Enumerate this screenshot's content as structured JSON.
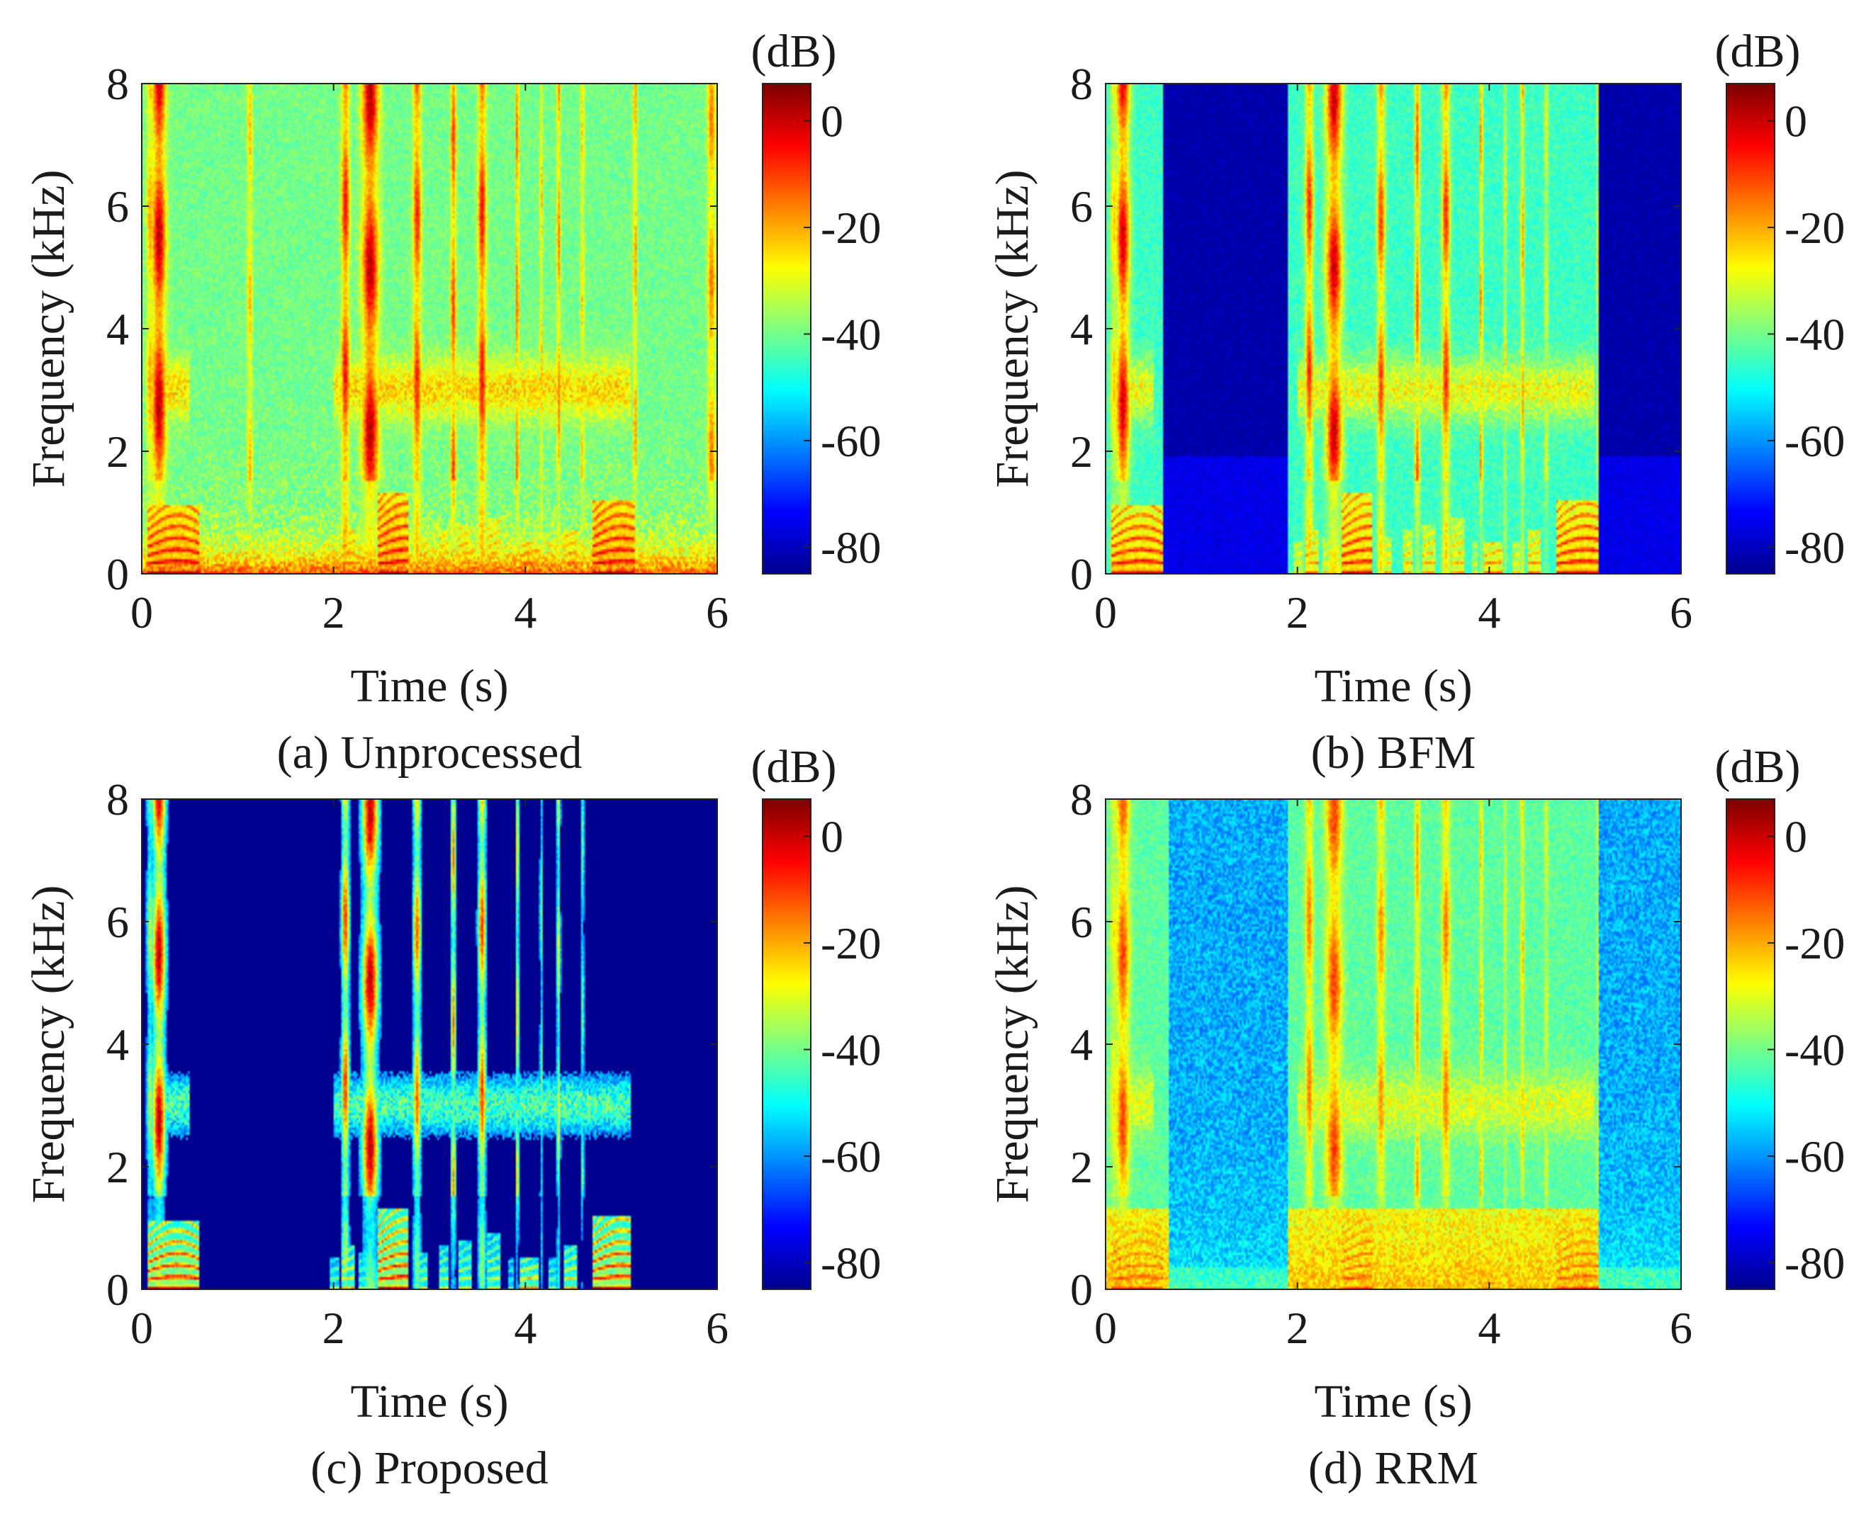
{
  "figure": {
    "colorbar_unit": "(dB)"
  },
  "colormap": {
    "name": "jet",
    "stops": [
      "#00008f",
      "#0000ff",
      "#007fff",
      "#00ffff",
      "#7fff7f",
      "#ffff00",
      "#ff7f00",
      "#ff0000",
      "#7f0000"
    ]
  },
  "chart_data": [
    {
      "type": "heatmap",
      "id": "a",
      "caption": "(a) Unprocessed",
      "xlabel": "Time (s)",
      "ylabel": "Frequency (kHz)",
      "xlim": [
        0,
        6
      ],
      "ylim": [
        0,
        8
      ],
      "xticks": [
        "0",
        "2",
        "4",
        "6"
      ],
      "yticks": [
        "0",
        "2",
        "4",
        "6",
        "8"
      ],
      "colorbar": {
        "unit": "(dB)",
        "range": [
          -85,
          7
        ],
        "ticks": [
          "0",
          "-20",
          "-40",
          "-60",
          "-80"
        ]
      },
      "noise_floor_db": -45,
      "low_freq_boost_db": 22,
      "speech_segments_s": [
        [
          0,
          0.6
        ],
        [
          1.9,
          5.2
        ]
      ]
    },
    {
      "type": "heatmap",
      "id": "b",
      "caption": "(b) BFM",
      "xlabel": "Time (s)",
      "ylabel": "Frequency (kHz)",
      "xlim": [
        0,
        6
      ],
      "ylim": [
        0,
        8
      ],
      "xticks": [
        "0",
        "2",
        "4",
        "6"
      ],
      "yticks": [
        "0",
        "2",
        "4",
        "6",
        "8"
      ],
      "colorbar": {
        "unit": "(dB)",
        "range": [
          -85,
          7
        ],
        "ticks": [
          "0",
          "-20",
          "-40",
          "-60",
          "-80"
        ]
      },
      "noise_floor_db": -82,
      "low_freq_boost_db": 0,
      "speech_segments_s": [
        [
          0,
          0.6
        ],
        [
          1.9,
          5.15
        ]
      ]
    },
    {
      "type": "heatmap",
      "id": "c",
      "caption": "(c) Proposed",
      "xlabel": "Time (s)",
      "ylabel": "Frequency (kHz)",
      "xlim": [
        0,
        6
      ],
      "ylim": [
        0,
        8
      ],
      "xticks": [
        "0",
        "2",
        "4",
        "6"
      ],
      "yticks": [
        "0",
        "2",
        "4",
        "6",
        "8"
      ],
      "colorbar": {
        "unit": "(dB)",
        "range": [
          -85,
          7
        ],
        "ticks": [
          "0",
          "-20",
          "-40",
          "-60",
          "-80"
        ]
      },
      "noise_floor_db": -86,
      "low_freq_boost_db": 0,
      "speech_segments_s": [
        [
          0,
          0.6
        ],
        [
          1.95,
          5.1
        ]
      ]
    },
    {
      "type": "heatmap",
      "id": "d",
      "caption": "(d) RRM",
      "xlabel": "Time (s)",
      "ylabel": "Frequency (kHz)",
      "xlim": [
        0,
        6
      ],
      "ylim": [
        0,
        8
      ],
      "xticks": [
        "0",
        "2",
        "4",
        "6"
      ],
      "yticks": [
        "0",
        "2",
        "4",
        "6",
        "8"
      ],
      "colorbar": {
        "unit": "(dB)",
        "range": [
          -85,
          7
        ],
        "ticks": [
          "0",
          "-20",
          "-40",
          "-60",
          "-80"
        ]
      },
      "noise_floor_db": -58,
      "low_freq_boost_db": 18,
      "speech_segments_s": [
        [
          0,
          0.65
        ],
        [
          1.9,
          5.15
        ]
      ]
    }
  ]
}
